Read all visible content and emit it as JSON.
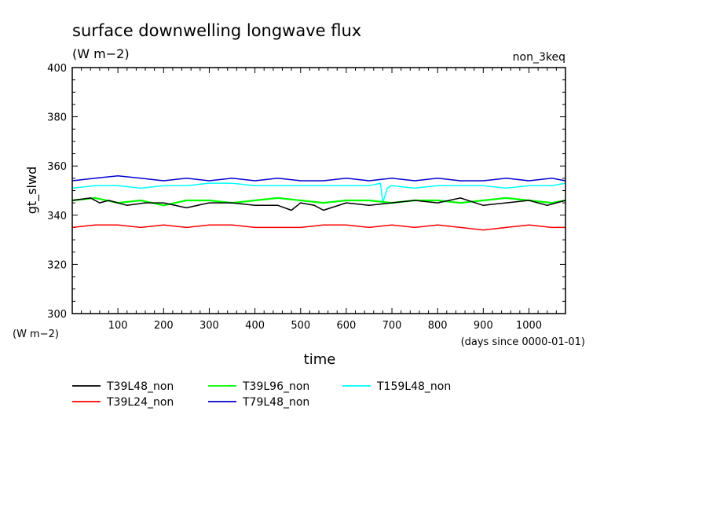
{
  "chart_data": {
    "type": "line",
    "title": "surface downwelling longwave flux",
    "subtitle": "(W m−2)",
    "run_label": "non_3keq",
    "ylabel": "gt_slwd",
    "y_unit_label": "(W m−2)",
    "xlabel": "time",
    "x_unit_label": "(days since 0000-01-01)",
    "xlim": [
      0,
      1080
    ],
    "ylim": [
      300,
      400
    ],
    "x_ticks": [
      100,
      200,
      300,
      400,
      500,
      600,
      700,
      800,
      900,
      1000
    ],
    "y_ticks": [
      300,
      320,
      340,
      360,
      380,
      400
    ],
    "grid": false,
    "legend_position": "bottom-left",
    "series": [
      {
        "name": "T39L48_non",
        "color": "#000000",
        "x": [
          0,
          40,
          60,
          80,
          120,
          160,
          200,
          250,
          300,
          350,
          400,
          450,
          480,
          500,
          530,
          550,
          600,
          650,
          700,
          750,
          800,
          850,
          900,
          950,
          1000,
          1040,
          1080
        ],
        "values": [
          346,
          347,
          345,
          346,
          344,
          345,
          345,
          343,
          345,
          345,
          344,
          344,
          342,
          345,
          344,
          342,
          345,
          344,
          345,
          346,
          345,
          347,
          344,
          345,
          346,
          344,
          346
        ]
      },
      {
        "name": "T39L24_non",
        "color": "#ff0000",
        "x": [
          0,
          50,
          100,
          150,
          200,
          250,
          300,
          350,
          400,
          450,
          500,
          550,
          600,
          650,
          700,
          750,
          800,
          850,
          900,
          950,
          1000,
          1050,
          1080
        ],
        "values": [
          335,
          336,
          336,
          335,
          336,
          335,
          336,
          336,
          335,
          335,
          335,
          336,
          336,
          335,
          336,
          335,
          336,
          335,
          334,
          335,
          336,
          335,
          335
        ]
      },
      {
        "name": "T39L96_non",
        "color": "#00ff00",
        "x": [
          0,
          50,
          100,
          150,
          200,
          250,
          300,
          350,
          400,
          450,
          500,
          550,
          600,
          650,
          700,
          750,
          800,
          850,
          900,
          950,
          1000,
          1050,
          1080
        ],
        "values": [
          346,
          347,
          345,
          346,
          344,
          346,
          346,
          345,
          346,
          347,
          346,
          345,
          346,
          346,
          345,
          346,
          346,
          345,
          346,
          347,
          346,
          345,
          346
        ]
      },
      {
        "name": "T79L48_non",
        "color": "#0000cd",
        "x": [
          0,
          50,
          100,
          150,
          200,
          250,
          300,
          350,
          400,
          450,
          500,
          550,
          600,
          650,
          700,
          750,
          800,
          850,
          900,
          950,
          1000,
          1050,
          1080
        ],
        "values": [
          354,
          355,
          356,
          355,
          354,
          355,
          354,
          355,
          354,
          355,
          354,
          354,
          355,
          354,
          355,
          354,
          355,
          354,
          354,
          355,
          354,
          355,
          354
        ]
      },
      {
        "name": "T159L48_non",
        "color": "#00ffff",
        "x": [
          0,
          50,
          100,
          150,
          200,
          250,
          300,
          350,
          400,
          450,
          500,
          550,
          600,
          650,
          675,
          680,
          690,
          700,
          750,
          800,
          850,
          900,
          950,
          1000,
          1050,
          1080
        ],
        "values": [
          351,
          352,
          352,
          351,
          352,
          352,
          353,
          353,
          352,
          352,
          352,
          352,
          352,
          352,
          353,
          345,
          351,
          352,
          351,
          352,
          352,
          352,
          351,
          352,
          352,
          353
        ]
      }
    ]
  }
}
